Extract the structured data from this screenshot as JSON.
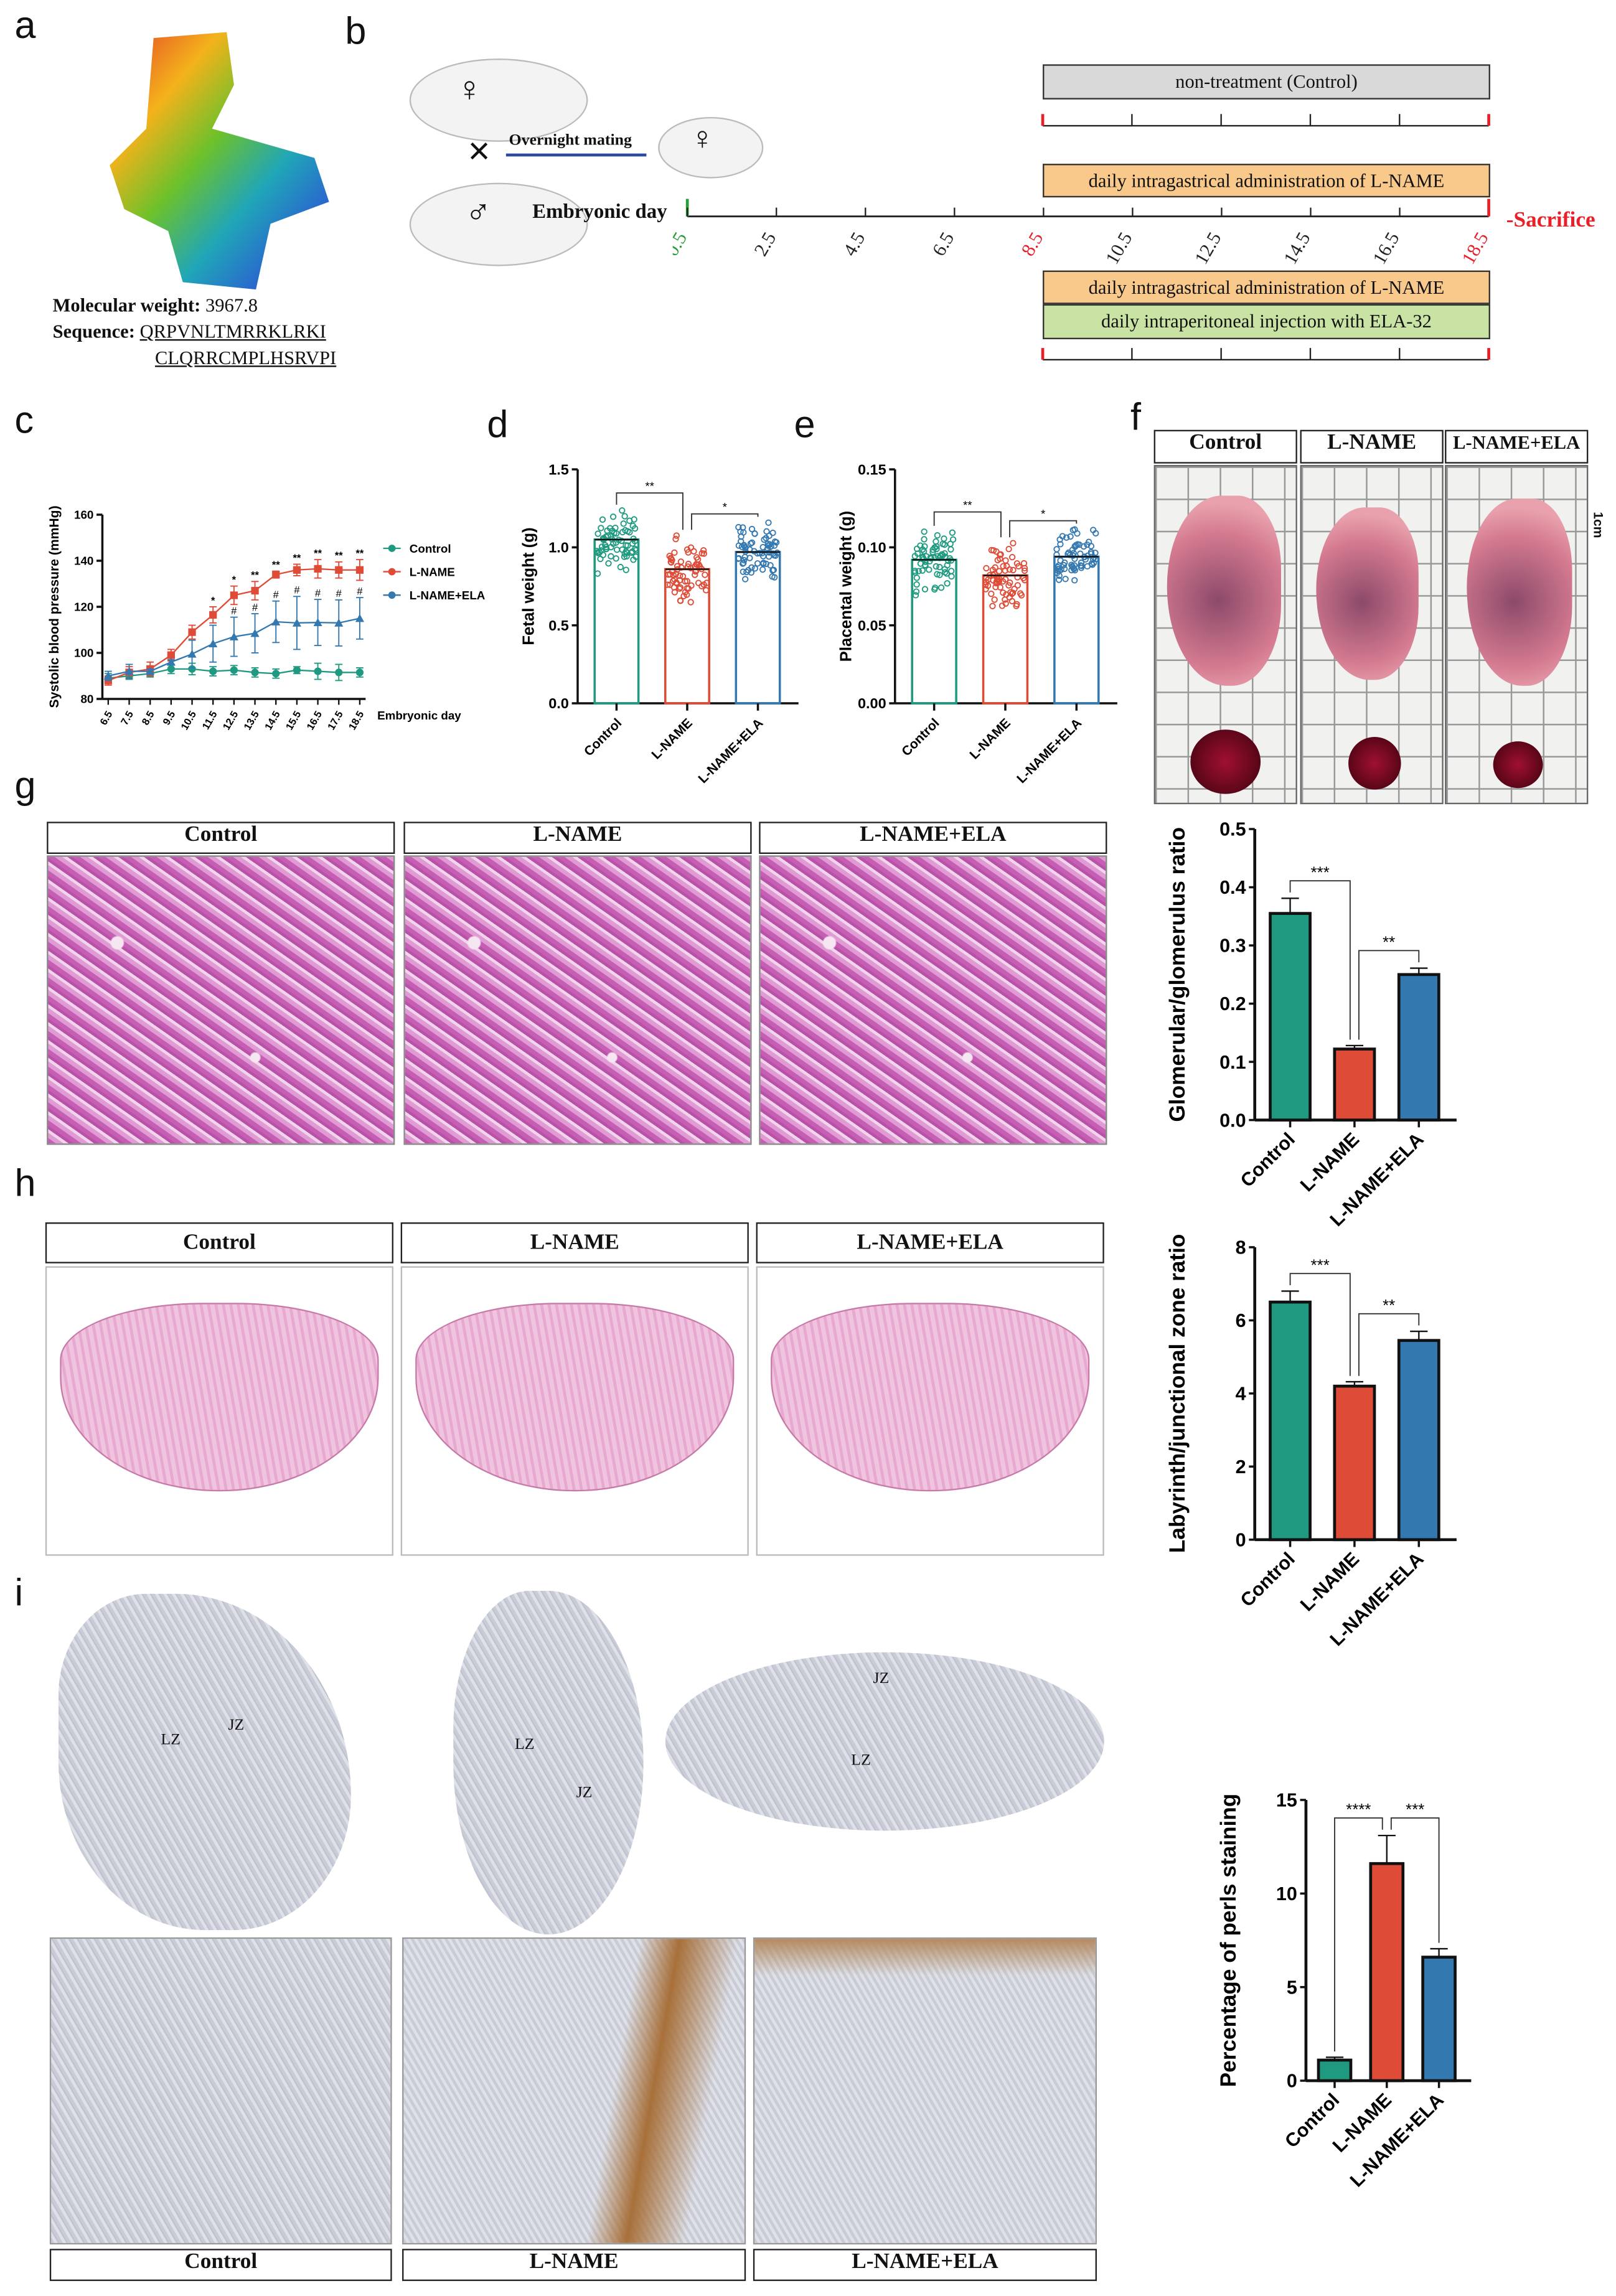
{
  "panel_labels": [
    "a",
    "b",
    "c",
    "d",
    "e",
    "f",
    "g",
    "h",
    "i"
  ],
  "panel_a": {
    "mw_label": "Molecular weight:",
    "mw_value": "3967.8",
    "seq_label": "Sequence:",
    "seq_line1": "QRPVNLTMRRKLRKI",
    "seq_line2": "CLQRRCMPLHSRVPI"
  },
  "panel_b": {
    "female_symbol": "♀",
    "male_symbol": "♂",
    "cross_symbol": "×",
    "mating_label": "Overnight mating",
    "day_label": "Embryonic day",
    "days": [
      "0.5",
      "2.5",
      "4.5",
      "6.5",
      "8.5",
      "10.5",
      "12.5",
      "14.5",
      "16.5",
      "18.5"
    ],
    "sacrifice_label": "-Sacrifice",
    "groups": [
      "non-treatment  (Control)",
      "daily intragastrical administration of L-NAME",
      "daily intragastrical administration of L-NAME",
      "daily intraperitoneal injection with  ELA-32"
    ],
    "colors": {
      "control_box": "#d9d9d9",
      "lname_box": "#f8c98a",
      "ela_box": "#c9e3a4",
      "start": "#2a9d3a",
      "end": "#e8202a"
    }
  },
  "panel_f": {
    "headers": [
      "Control",
      "L-NAME",
      "L-NAME+ELA"
    ],
    "scale_label": "1cm"
  },
  "panel_g": {
    "headers": [
      "Control",
      "L-NAME",
      "L-NAME+ELA"
    ]
  },
  "panel_h": {
    "headers": [
      "Control",
      "L-NAME",
      "L-NAME+ELA"
    ]
  },
  "panel_i": {
    "headers": [
      "Control",
      "L-NAME",
      "L-NAME+ELA"
    ],
    "zone_labels": [
      "LZ",
      "JZ",
      "LZ",
      "JZ",
      "JZ",
      "LZ"
    ]
  },
  "colors": {
    "control": "#1f9a80",
    "lname": "#de4b36",
    "ela": "#3478b0"
  },
  "chart_data": [
    {
      "id": "c",
      "type": "line",
      "ylabel": "Systolic blood pressure (mmHg)",
      "xlabel": "Embryonic day",
      "ylim": [
        80,
        160
      ],
      "yticks": [
        80,
        100,
        120,
        140,
        160
      ],
      "x": [
        "6.5",
        "7.5",
        "8.5",
        "9.5",
        "10.5",
        "11.5",
        "12.5",
        "13.5",
        "14.5",
        "15.5",
        "16.5",
        "17.5",
        "18.5"
      ],
      "legend": "right",
      "series": [
        {
          "name": "Control",
          "marker": "circle",
          "values": [
            89,
            90,
            91,
            93,
            93,
            92,
            92.5,
            91.5,
            91,
            92.5,
            92,
            91.5,
            91.5
          ],
          "err": [
            2,
            1.5,
            1.5,
            2,
            2.5,
            2,
            2,
            2,
            2,
            1.5,
            3.5,
            3.5,
            2
          ]
        },
        {
          "name": "L-NAME",
          "marker": "square",
          "values": [
            88,
            91.5,
            93,
            99,
            109,
            116.5,
            125,
            127,
            134,
            136,
            136.5,
            136,
            136
          ],
          "err": [
            2,
            2.5,
            3,
            2.5,
            3,
            3.5,
            4,
            4,
            1.5,
            2.5,
            4,
            3.5,
            4.5
          ]
        },
        {
          "name": "L-NAME+ELA",
          "marker": "triangle",
          "values": [
            90,
            92,
            92,
            96,
            99.5,
            104,
            107,
            108.5,
            113.5,
            113,
            113.2,
            113,
            115
          ],
          "err": [
            2,
            3,
            1,
            1,
            6,
            8,
            8.5,
            8.5,
            9,
            11.5,
            10,
            10,
            9
          ]
        }
      ],
      "annotations_lname": [
        "",
        "",
        "",
        "",
        "",
        "*",
        "*",
        "**",
        "**",
        "**",
        "**",
        "**",
        "**"
      ],
      "annotations_ela": [
        "",
        "",
        "",
        "",
        "",
        "",
        "#",
        "#",
        "#",
        "#",
        "#",
        "#",
        "#"
      ]
    },
    {
      "id": "d",
      "type": "bar",
      "ylabel": "Fetal weight (g)",
      "ylim": [
        0,
        1.5
      ],
      "yticks": [
        "0.0",
        "0.5",
        "1.0",
        "1.5"
      ],
      "categories": [
        "Control",
        "L-NAME",
        "L-NAME+ELA"
      ],
      "values": [
        1.05,
        0.86,
        0.97
      ],
      "scatter": true,
      "significance": [
        {
          "from": 0,
          "to": 1,
          "label": "**"
        },
        {
          "from": 1,
          "to": 2,
          "label": "*"
        }
      ]
    },
    {
      "id": "e",
      "type": "bar",
      "ylabel": "Placental weight (g)",
      "ylim": [
        0,
        0.15
      ],
      "yticks": [
        "0.00",
        "0.05",
        "0.10",
        "0.15"
      ],
      "categories": [
        "Control",
        "L-NAME",
        "L-NAME+ELA"
      ],
      "values": [
        0.092,
        0.082,
        0.094
      ],
      "scatter": true,
      "significance": [
        {
          "from": 0,
          "to": 1,
          "label": "**"
        },
        {
          "from": 1,
          "to": 2,
          "label": "*"
        }
      ]
    },
    {
      "id": "g",
      "type": "bar",
      "ylabel": "Glomerular/glomerulus ratio",
      "ylim": [
        0,
        0.5
      ],
      "yticks": [
        "0.0",
        "0.1",
        "0.2",
        "0.3",
        "0.4",
        "0.5"
      ],
      "categories": [
        "Control",
        "L-NAME",
        "L-NAME+ELA"
      ],
      "values": [
        0.355,
        0.122,
        0.25
      ],
      "err": [
        0.026,
        0.006,
        0.011
      ],
      "significance": [
        {
          "from": 0,
          "to": 1,
          "label": "***"
        },
        {
          "from": 1,
          "to": 2,
          "label": "**"
        }
      ]
    },
    {
      "id": "h",
      "type": "bar",
      "ylabel": "Labyrinth/junctional zone ratio",
      "ylim": [
        0,
        8
      ],
      "yticks": [
        "0",
        "2",
        "4",
        "6",
        "8"
      ],
      "categories": [
        "Control",
        "L-NAME",
        "L-NAME+ELA"
      ],
      "values": [
        6.5,
        4.2,
        5.45
      ],
      "err": [
        0.3,
        0.12,
        0.25
      ],
      "significance": [
        {
          "from": 0,
          "to": 1,
          "label": "***"
        },
        {
          "from": 1,
          "to": 2,
          "label": "**"
        }
      ]
    },
    {
      "id": "i",
      "type": "bar",
      "ylabel": "Percentage of perls staining",
      "ylim": [
        0,
        15
      ],
      "yticks": [
        "0",
        "5",
        "10",
        "15"
      ],
      "categories": [
        "Control",
        "L-NAME",
        "L-NAME+ELA"
      ],
      "values": [
        1.1,
        11.6,
        6.6
      ],
      "err": [
        0.15,
        1.5,
        0.45
      ],
      "significance": [
        {
          "from": 0,
          "to": 1,
          "label": "****"
        },
        {
          "from": 1,
          "to": 2,
          "label": "***"
        }
      ]
    }
  ]
}
